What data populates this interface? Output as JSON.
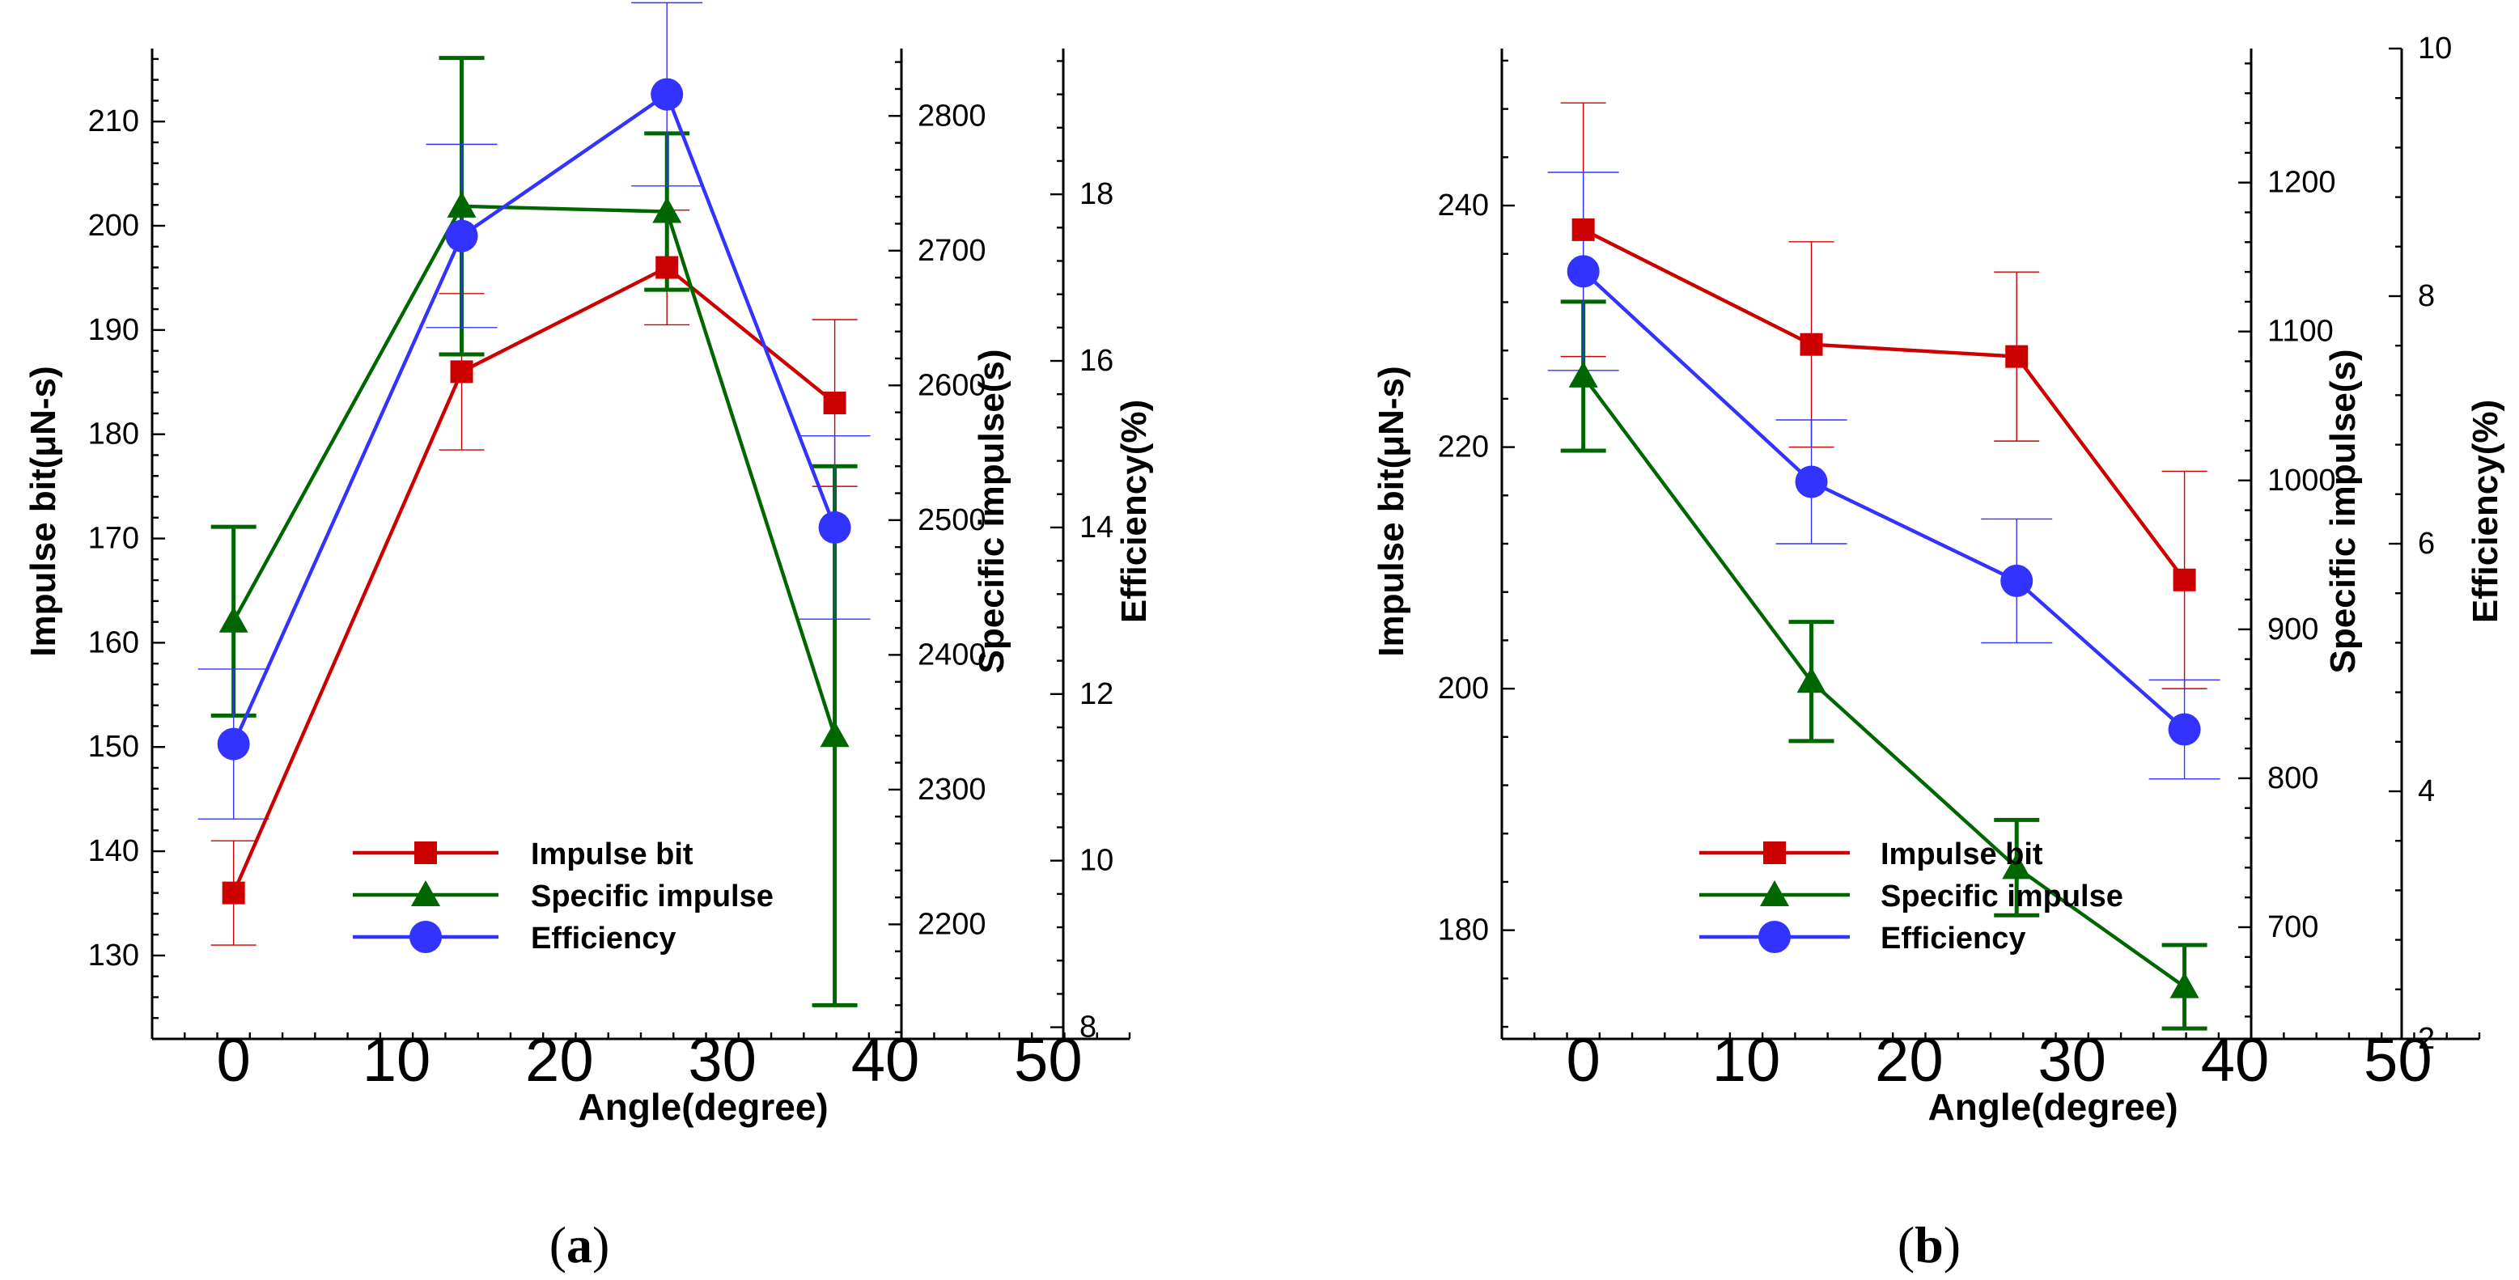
{
  "colors": {
    "impulse": "#cc0000",
    "specific": "#006600",
    "efficiency": "#3333ff",
    "axis": "#000000"
  },
  "chart_data": [
    {
      "type": "line",
      "panel_label": "a",
      "x_axis": {
        "label": "Angle(degree)",
        "range": [
          -5,
          55
        ],
        "ticks": [
          0,
          10,
          20,
          30,
          40,
          50
        ]
      },
      "y_axes": [
        {
          "id": "impulse",
          "label": "Impulse bit(μN-s)",
          "range": [
            122,
            217
          ],
          "ticks": [
            130,
            140,
            150,
            160,
            170,
            180,
            190,
            200,
            210
          ],
          "side": "left"
        },
        {
          "id": "specific",
          "label": "Specific impulse(s)",
          "range": [
            2115,
            2850
          ],
          "ticks": [
            2200,
            2300,
            2400,
            2500,
            2600,
            2700,
            2800
          ],
          "side": "right"
        },
        {
          "id": "efficiency",
          "label": "Efficiency(%)",
          "range": [
            7.86,
            19.75
          ],
          "ticks": [
            8,
            10,
            12,
            14,
            16,
            18
          ],
          "side": "right-outer"
        }
      ],
      "x": [
        0,
        14,
        26.6,
        36.9
      ],
      "series": [
        {
          "name": "Impulse bit",
          "axis": "impulse",
          "marker": "square",
          "values": [
            136,
            186,
            196,
            183
          ],
          "errors": [
            5,
            7.5,
            5.5,
            8
          ]
        },
        {
          "name": "Specific impulse",
          "axis": "specific",
          "marker": "triangle",
          "values": [
            2425,
            2733,
            2729,
            2340
          ],
          "errors": [
            70,
            110,
            58,
            200
          ]
        },
        {
          "name": "Efficiency",
          "axis": "efficiency",
          "marker": "circle",
          "values": [
            11.4,
            17.5,
            19.2,
            14.0
          ],
          "errors": [
            0.9,
            1.1,
            1.1,
            1.1
          ]
        }
      ],
      "legend": {
        "placement": "bottom-center",
        "entries": [
          "Impulse bit",
          "Specific impulse",
          "Efficiency"
        ]
      }
    },
    {
      "type": "line",
      "panel_label": "b",
      "x_axis": {
        "label": "Angle(degree)",
        "range": [
          -5,
          55
        ],
        "ticks": [
          0,
          10,
          20,
          30,
          40,
          50
        ]
      },
      "y_axes": [
        {
          "id": "impulse",
          "label": "Impulse bit(μN-s)",
          "range": [
            171,
            253
          ],
          "ticks": [
            180,
            200,
            220,
            240
          ],
          "side": "left"
        },
        {
          "id": "specific",
          "label": "Specific impulse(s)",
          "range": [
            625,
            1290
          ],
          "ticks": [
            700,
            800,
            900,
            1000,
            1100,
            1200
          ],
          "side": "right"
        },
        {
          "id": "efficiency",
          "label": "Efficiency(%)",
          "range": [
            2,
            10
          ],
          "ticks": [
            2,
            4,
            6,
            8,
            10
          ],
          "side": "right-outer"
        }
      ],
      "x": [
        0,
        14,
        26.6,
        36.9
      ],
      "series": [
        {
          "name": "Impulse bit",
          "axis": "impulse",
          "marker": "square",
          "values": [
            238,
            228.5,
            227.5,
            209
          ],
          "errors": [
            10.5,
            8.5,
            7,
            9
          ]
        },
        {
          "name": "Specific impulse",
          "axis": "specific",
          "marker": "triangle",
          "values": [
            1070,
            865,
            740,
            660
          ],
          "errors": [
            50,
            40,
            32,
            28
          ]
        },
        {
          "name": "Efficiency",
          "axis": "efficiency",
          "marker": "circle",
          "values": [
            8.2,
            6.5,
            5.7,
            4.5
          ],
          "errors": [
            0.8,
            0.5,
            0.5,
            0.4
          ]
        }
      ],
      "legend": {
        "placement": "bottom-center",
        "entries": [
          "Impulse bit",
          "Specific impulse",
          "Efficiency"
        ]
      }
    }
  ]
}
